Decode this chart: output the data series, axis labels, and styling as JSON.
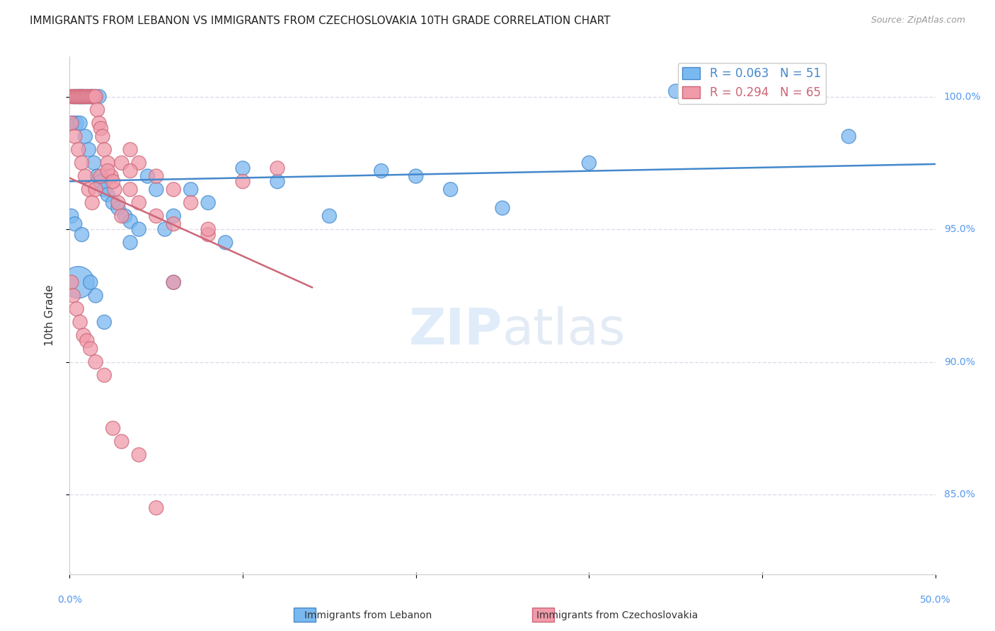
{
  "title": "IMMIGRANTS FROM LEBANON VS IMMIGRANTS FROM CZECHOSLOVAKIA 10TH GRADE CORRELATION CHART",
  "source": "Source: ZipAtlas.com",
  "ylabel": "10th Grade",
  "y_ticks": [
    85.0,
    90.0,
    95.0,
    100.0
  ],
  "y_tick_labels": [
    "85.0%",
    "90.0%",
    "95.0%",
    "100.0%"
  ],
  "legend_entries": [
    {
      "label": "Immigrants from Lebanon",
      "color": "#6aaee8",
      "R": 0.063,
      "N": 51
    },
    {
      "label": "Immigrants from Czechoslovakia",
      "color": "#e8829a",
      "R": 0.294,
      "N": 65
    }
  ],
  "lebanon_scatter_x": [
    0.003,
    0.005,
    0.006,
    0.007,
    0.008,
    0.01,
    0.012,
    0.013,
    0.015,
    0.017,
    0.002,
    0.004,
    0.006,
    0.009,
    0.011,
    0.014,
    0.016,
    0.018,
    0.02,
    0.022,
    0.025,
    0.028,
    0.032,
    0.035,
    0.04,
    0.045,
    0.05,
    0.055,
    0.06,
    0.07,
    0.08,
    0.09,
    0.1,
    0.12,
    0.15,
    0.18,
    0.2,
    0.22,
    0.25,
    0.3,
    0.001,
    0.003,
    0.007,
    0.015,
    0.02,
    0.035,
    0.06,
    0.35,
    0.45,
    0.005,
    0.012
  ],
  "lebanon_scatter_y": [
    100.0,
    100.0,
    100.0,
    100.0,
    100.0,
    100.0,
    100.0,
    100.0,
    100.0,
    100.0,
    99.0,
    99.0,
    99.0,
    98.5,
    98.0,
    97.5,
    97.0,
    96.8,
    96.5,
    96.3,
    96.0,
    95.8,
    95.5,
    95.3,
    95.0,
    97.0,
    96.5,
    95.0,
    93.0,
    96.5,
    96.0,
    94.5,
    97.3,
    96.8,
    95.5,
    97.2,
    97.0,
    96.5,
    95.8,
    97.5,
    95.5,
    95.2,
    94.8,
    92.5,
    91.5,
    94.5,
    95.5,
    100.2,
    98.5,
    93.0,
    93.0
  ],
  "lebanon_scatter_size": [
    30,
    30,
    30,
    30,
    30,
    30,
    30,
    30,
    30,
    30,
    30,
    30,
    30,
    30,
    30,
    30,
    30,
    30,
    30,
    30,
    30,
    30,
    30,
    30,
    30,
    30,
    30,
    30,
    30,
    30,
    30,
    30,
    30,
    30,
    30,
    30,
    30,
    30,
    30,
    30,
    30,
    30,
    30,
    30,
    30,
    30,
    30,
    30,
    30,
    150,
    30
  ],
  "czech_scatter_x": [
    0.001,
    0.002,
    0.003,
    0.004,
    0.005,
    0.006,
    0.007,
    0.008,
    0.009,
    0.01,
    0.011,
    0.012,
    0.013,
    0.014,
    0.015,
    0.016,
    0.017,
    0.018,
    0.019,
    0.02,
    0.022,
    0.024,
    0.026,
    0.028,
    0.03,
    0.035,
    0.04,
    0.05,
    0.06,
    0.07,
    0.001,
    0.003,
    0.005,
    0.007,
    0.009,
    0.011,
    0.013,
    0.015,
    0.018,
    0.022,
    0.025,
    0.03,
    0.035,
    0.04,
    0.05,
    0.06,
    0.08,
    0.1,
    0.12,
    0.035,
    0.001,
    0.002,
    0.004,
    0.006,
    0.008,
    0.01,
    0.012,
    0.015,
    0.02,
    0.025,
    0.03,
    0.04,
    0.05,
    0.06,
    0.08
  ],
  "czech_scatter_y": [
    100.0,
    100.0,
    100.0,
    100.0,
    100.0,
    100.0,
    100.0,
    100.0,
    100.0,
    100.0,
    100.0,
    100.0,
    100.0,
    100.0,
    100.0,
    99.5,
    99.0,
    98.8,
    98.5,
    98.0,
    97.5,
    97.0,
    96.5,
    96.0,
    95.5,
    98.0,
    97.5,
    97.0,
    96.5,
    96.0,
    99.0,
    98.5,
    98.0,
    97.5,
    97.0,
    96.5,
    96.0,
    96.5,
    97.0,
    97.2,
    96.8,
    97.5,
    97.2,
    96.0,
    95.5,
    95.2,
    94.8,
    96.8,
    97.3,
    96.5,
    93.0,
    92.5,
    92.0,
    91.5,
    91.0,
    90.8,
    90.5,
    90.0,
    89.5,
    87.5,
    87.0,
    86.5,
    84.5,
    93.0,
    95.0
  ],
  "czech_scatter_size": [
    30,
    30,
    30,
    30,
    30,
    30,
    30,
    30,
    30,
    30,
    30,
    30,
    30,
    30,
    30,
    30,
    30,
    30,
    30,
    30,
    30,
    30,
    30,
    30,
    30,
    30,
    30,
    30,
    30,
    30,
    30,
    30,
    30,
    30,
    30,
    30,
    30,
    30,
    30,
    30,
    30,
    30,
    30,
    30,
    30,
    30,
    30,
    30,
    30,
    30,
    30,
    30,
    30,
    30,
    30,
    30,
    30,
    30,
    30,
    30,
    30,
    30,
    30,
    30,
    30
  ],
  "xlim": [
    0.0,
    0.5
  ],
  "ylim": [
    82.0,
    101.5
  ],
  "lebanon_color": "#7ab8f0",
  "czech_color": "#f09aaa",
  "lebanon_line_color": "#4488cc",
  "czech_line_color": "#cc6677",
  "background_color": "#ffffff",
  "grid_color": "#ddddee",
  "tick_label_color": "#5599ee",
  "title_color": "#222222",
  "source_color": "#999999"
}
